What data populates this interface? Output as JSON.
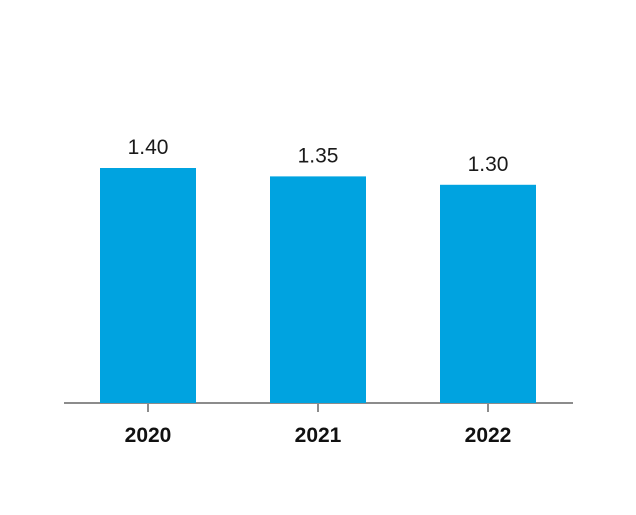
{
  "chart_data": {
    "type": "bar",
    "categories": [
      "2020",
      "2021",
      "2022"
    ],
    "values": [
      1.4,
      1.35,
      1.3
    ],
    "value_labels": [
      "1.40",
      "1.35",
      "1.30"
    ],
    "title": "",
    "xlabel": "",
    "ylabel": "",
    "ylim": [
      0,
      1.4
    ],
    "grid": false,
    "legend": "none",
    "colors": {
      "bar": "#00a3e0",
      "axis": "#8c8c8c",
      "text": "#1a1a1a"
    }
  }
}
